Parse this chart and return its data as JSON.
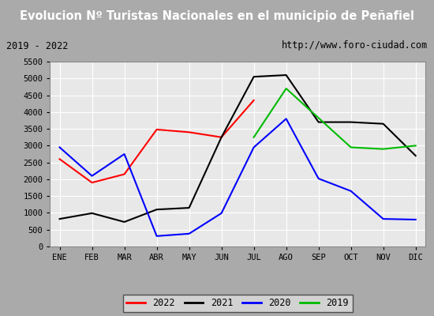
{
  "title": "Evolucion Nº Turistas Nacionales en el municipio de Peñafiel",
  "subtitle_left": "2019 - 2022",
  "subtitle_right": "http://www.foro-ciudad.com",
  "months": [
    "ENE",
    "FEB",
    "MAR",
    "ABR",
    "MAY",
    "JUN",
    "JUL",
    "AGO",
    "SEP",
    "OCT",
    "NOV",
    "DIC"
  ],
  "series": {
    "2022": [
      2600,
      1900,
      2150,
      3480,
      3400,
      3250,
      4350,
      null,
      null,
      null,
      null,
      null
    ],
    "2021": [
      820,
      990,
      730,
      1100,
      1150,
      3250,
      5050,
      5100,
      3700,
      3700,
      3650,
      2700
    ],
    "2020": [
      2950,
      2100,
      2750,
      310,
      380,
      990,
      2950,
      3800,
      2020,
      1650,
      820,
      800
    ],
    "2019": [
      null,
      null,
      null,
      null,
      null,
      null,
      3250,
      4700,
      null,
      2950,
      2900,
      3000
    ]
  },
  "colors": {
    "2022": "#ff0000",
    "2021": "#000000",
    "2020": "#0000ff",
    "2019": "#00bb00"
  },
  "ylim": [
    0,
    5500
  ],
  "yticks": [
    0,
    500,
    1000,
    1500,
    2000,
    2500,
    3000,
    3500,
    4000,
    4500,
    5000,
    5500
  ],
  "title_bg": "#3a8fc7",
  "title_color": "#ffffff",
  "subtitle_bg": "#e8e8e8",
  "plot_bg": "#e8e8e8",
  "outer_bg": "#c8c8c8",
  "grid_color": "#ffffff",
  "linewidth": 1.5,
  "title_fontsize": 10.5,
  "subtitle_fontsize": 8.5,
  "tick_fontsize": 7.5
}
